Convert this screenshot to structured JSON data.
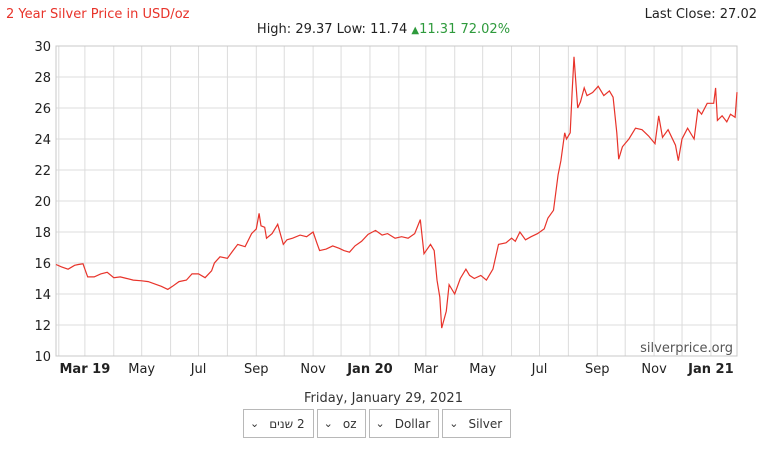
{
  "header": {
    "title": "2 Year Silver Price in USD/oz",
    "last_close": "Last Close: 27.02",
    "high_low": "High: 29.37 Low: 11.74",
    "change_abs": "11.31",
    "change_pct": "72.02%",
    "change_icon": "triangle-up-icon"
  },
  "watermark": "silverprice.org",
  "date_label": "Friday, January 29, 2021",
  "controls": [
    {
      "name": "range-select",
      "label": "2 שנים"
    },
    {
      "name": "unit-select",
      "label": "oz"
    },
    {
      "name": "currency-select",
      "label": "Dollar"
    },
    {
      "name": "metal-select",
      "label": "Silver"
    }
  ],
  "colors": {
    "line": "#e8332a",
    "title": "#e8332a",
    "up": "#2e9a3c",
    "grid": "#dcdcdc"
  },
  "chart_data": {
    "type": "line",
    "title": "2 Year Silver Price in USD/oz",
    "ylim": [
      10,
      30
    ],
    "yticks": [
      10,
      12,
      14,
      16,
      18,
      20,
      22,
      24,
      26,
      28,
      30
    ],
    "xlim": [
      "2019-01-29",
      "2021-01-29"
    ],
    "xticks": [
      {
        "date": "2019-03-01",
        "label": "Mar 19",
        "bold": true
      },
      {
        "date": "2019-05-01",
        "label": "May",
        "bold": false
      },
      {
        "date": "2019-07-01",
        "label": "Jul",
        "bold": false
      },
      {
        "date": "2019-09-01",
        "label": "Sep",
        "bold": false
      },
      {
        "date": "2019-11-01",
        "label": "Nov",
        "bold": false
      },
      {
        "date": "2020-01-01",
        "label": "Jan 20",
        "bold": true
      },
      {
        "date": "2020-03-01",
        "label": "Mar",
        "bold": false
      },
      {
        "date": "2020-05-01",
        "label": "May",
        "bold": false
      },
      {
        "date": "2020-07-01",
        "label": "Jul",
        "bold": false
      },
      {
        "date": "2020-09-01",
        "label": "Sep",
        "bold": false
      },
      {
        "date": "2020-11-01",
        "label": "Nov",
        "bold": false
      },
      {
        "date": "2021-01-01",
        "label": "Jan 21",
        "bold": true
      }
    ],
    "grid": true,
    "series": [
      {
        "color": "#e8332a",
        "points": [
          [
            "2019-01-29",
            15.9
          ],
          [
            "2019-02-04",
            15.75
          ],
          [
            "2019-02-11",
            15.6
          ],
          [
            "2019-02-18",
            15.85
          ],
          [
            "2019-02-22",
            15.9
          ],
          [
            "2019-02-27",
            15.95
          ],
          [
            "2019-03-01",
            15.6
          ],
          [
            "2019-03-04",
            15.1
          ],
          [
            "2019-03-11",
            15.1
          ],
          [
            "2019-03-18",
            15.3
          ],
          [
            "2019-03-25",
            15.4
          ],
          [
            "2019-04-01",
            15.05
          ],
          [
            "2019-04-08",
            15.1
          ],
          [
            "2019-04-15",
            15.0
          ],
          [
            "2019-04-22",
            14.9
          ],
          [
            "2019-05-01",
            14.85
          ],
          [
            "2019-05-08",
            14.8
          ],
          [
            "2019-05-15",
            14.65
          ],
          [
            "2019-05-22",
            14.5
          ],
          [
            "2019-05-29",
            14.3
          ],
          [
            "2019-06-03",
            14.5
          ],
          [
            "2019-06-10",
            14.8
          ],
          [
            "2019-06-18",
            14.9
          ],
          [
            "2019-06-24",
            15.3
          ],
          [
            "2019-07-01",
            15.3
          ],
          [
            "2019-07-08",
            15.05
          ],
          [
            "2019-07-15",
            15.5
          ],
          [
            "2019-07-18",
            16.0
          ],
          [
            "2019-07-24",
            16.4
          ],
          [
            "2019-08-01",
            16.3
          ],
          [
            "2019-08-07",
            16.8
          ],
          [
            "2019-08-12",
            17.2
          ],
          [
            "2019-08-20",
            17.05
          ],
          [
            "2019-08-27",
            17.9
          ],
          [
            "2019-09-01",
            18.2
          ],
          [
            "2019-09-04",
            19.2
          ],
          [
            "2019-09-06",
            18.4
          ],
          [
            "2019-09-10",
            18.3
          ],
          [
            "2019-09-12",
            17.6
          ],
          [
            "2019-09-18",
            17.9
          ],
          [
            "2019-09-24",
            18.5
          ],
          [
            "2019-09-30",
            17.2
          ],
          [
            "2019-10-04",
            17.5
          ],
          [
            "2019-10-10",
            17.6
          ],
          [
            "2019-10-18",
            17.8
          ],
          [
            "2019-10-25",
            17.7
          ],
          [
            "2019-11-01",
            18.0
          ],
          [
            "2019-11-05",
            17.3
          ],
          [
            "2019-11-08",
            16.8
          ],
          [
            "2019-11-15",
            16.9
          ],
          [
            "2019-11-22",
            17.1
          ],
          [
            "2019-11-29",
            16.95
          ],
          [
            "2019-12-04",
            16.8
          ],
          [
            "2019-12-10",
            16.7
          ],
          [
            "2019-12-16",
            17.1
          ],
          [
            "2019-12-23",
            17.4
          ],
          [
            "2019-12-30",
            17.85
          ],
          [
            "2020-01-07",
            18.1
          ],
          [
            "2020-01-14",
            17.8
          ],
          [
            "2020-01-20",
            17.9
          ],
          [
            "2020-01-28",
            17.6
          ],
          [
            "2020-02-04",
            17.7
          ],
          [
            "2020-02-11",
            17.6
          ],
          [
            "2020-02-18",
            17.9
          ],
          [
            "2020-02-24",
            18.8
          ],
          [
            "2020-02-28",
            16.6
          ],
          [
            "2020-03-06",
            17.2
          ],
          [
            "2020-03-10",
            16.8
          ],
          [
            "2020-03-13",
            14.9
          ],
          [
            "2020-03-16",
            13.8
          ],
          [
            "2020-03-18",
            11.8
          ],
          [
            "2020-03-23",
            12.9
          ],
          [
            "2020-03-26",
            14.6
          ],
          [
            "2020-04-01",
            14.0
          ],
          [
            "2020-04-07",
            15.0
          ],
          [
            "2020-04-13",
            15.6
          ],
          [
            "2020-04-17",
            15.2
          ],
          [
            "2020-04-22",
            15.0
          ],
          [
            "2020-04-29",
            15.2
          ],
          [
            "2020-05-05",
            14.9
          ],
          [
            "2020-05-12",
            15.6
          ],
          [
            "2020-05-18",
            17.2
          ],
          [
            "2020-05-26",
            17.3
          ],
          [
            "2020-06-01",
            17.6
          ],
          [
            "2020-06-05",
            17.4
          ],
          [
            "2020-06-10",
            18.0
          ],
          [
            "2020-06-16",
            17.5
          ],
          [
            "2020-06-22",
            17.7
          ],
          [
            "2020-06-29",
            17.9
          ],
          [
            "2020-07-06",
            18.2
          ],
          [
            "2020-07-10",
            18.9
          ],
          [
            "2020-07-16",
            19.4
          ],
          [
            "2020-07-21",
            21.7
          ],
          [
            "2020-07-24",
            22.6
          ],
          [
            "2020-07-28",
            24.4
          ],
          [
            "2020-07-30",
            24.0
          ],
          [
            "2020-08-03",
            24.4
          ],
          [
            "2020-08-05",
            27.0
          ],
          [
            "2020-08-07",
            29.3
          ],
          [
            "2020-08-11",
            26.0
          ],
          [
            "2020-08-14",
            26.4
          ],
          [
            "2020-08-18",
            27.3
          ],
          [
            "2020-08-21",
            26.8
          ],
          [
            "2020-08-27",
            27.0
          ],
          [
            "2020-09-02",
            27.4
          ],
          [
            "2020-09-08",
            26.8
          ],
          [
            "2020-09-14",
            27.1
          ],
          [
            "2020-09-18",
            26.7
          ],
          [
            "2020-09-22",
            24.4
          ],
          [
            "2020-09-24",
            22.7
          ],
          [
            "2020-09-28",
            23.5
          ],
          [
            "2020-10-05",
            24.0
          ],
          [
            "2020-10-12",
            24.7
          ],
          [
            "2020-10-19",
            24.6
          ],
          [
            "2020-10-26",
            24.2
          ],
          [
            "2020-11-02",
            23.7
          ],
          [
            "2020-11-06",
            25.5
          ],
          [
            "2020-11-10",
            24.1
          ],
          [
            "2020-11-16",
            24.6
          ],
          [
            "2020-11-24",
            23.6
          ],
          [
            "2020-11-27",
            22.6
          ],
          [
            "2020-12-01",
            24.0
          ],
          [
            "2020-12-07",
            24.7
          ],
          [
            "2020-12-14",
            24.0
          ],
          [
            "2020-12-18",
            25.9
          ],
          [
            "2020-12-22",
            25.6
          ],
          [
            "2020-12-28",
            26.3
          ],
          [
            "2021-01-04",
            26.3
          ],
          [
            "2021-01-06",
            27.3
          ],
          [
            "2021-01-08",
            25.2
          ],
          [
            "2021-01-13",
            25.5
          ],
          [
            "2021-01-18",
            25.1
          ],
          [
            "2021-01-22",
            25.6
          ],
          [
            "2021-01-27",
            25.4
          ],
          [
            "2021-01-29",
            27.02
          ]
        ]
      }
    ]
  }
}
